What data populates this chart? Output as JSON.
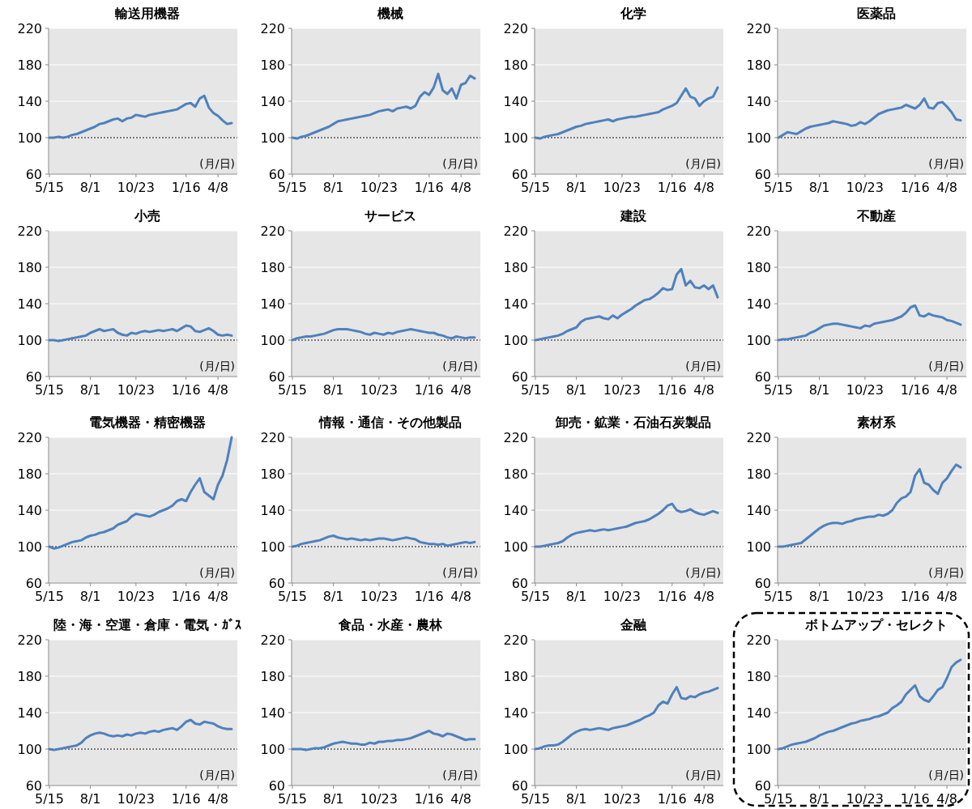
{
  "chart_data": [
    {
      "type": "line",
      "title": "輸送用機器",
      "categories": [
        "5/15",
        null,
        null,
        null,
        null,
        null,
        null,
        null,
        null,
        "8/1",
        null,
        null,
        null,
        null,
        null,
        null,
        null,
        null,
        null,
        "10/23",
        null,
        null,
        null,
        null,
        null,
        null,
        null,
        null,
        null,
        null,
        "1/16",
        null,
        null,
        null,
        null,
        null,
        null,
        "4/8",
        null,
        null,
        null
      ],
      "color": "#4f81bd",
      "values": [
        100,
        100,
        101,
        100,
        101,
        103,
        104,
        106,
        108,
        110,
        112,
        115,
        116,
        118,
        120,
        121,
        118,
        121,
        122,
        125,
        124,
        123,
        125,
        126,
        127,
        128,
        129,
        130,
        131,
        134,
        137,
        138,
        134,
        143,
        146,
        133,
        127,
        124,
        119,
        115,
        116
      ],
      "ylim": [
        60,
        220
      ],
      "yticks": [
        60,
        100,
        140,
        180,
        220
      ],
      "grid": "y",
      "ref_lines": [
        {
          "axis": "y",
          "value": 100,
          "line_style": "dotted",
          "color": "#000000"
        }
      ],
      "annotations": [
        "(月/日)"
      ]
    },
    {
      "type": "line",
      "title": "機械",
      "categories": [
        "5/15",
        null,
        null,
        null,
        null,
        null,
        null,
        null,
        null,
        "8/1",
        null,
        null,
        null,
        null,
        null,
        null,
        null,
        null,
        null,
        "10/23",
        null,
        null,
        null,
        null,
        null,
        null,
        null,
        null,
        null,
        null,
        "1/16",
        null,
        null,
        null,
        null,
        null,
        null,
        "4/8",
        null,
        null,
        null
      ],
      "color": "#4f81bd",
      "values": [
        100,
        99,
        101,
        102,
        104,
        106,
        108,
        110,
        112,
        115,
        118,
        119,
        120,
        121,
        122,
        123,
        124,
        125,
        127,
        129,
        130,
        131,
        129,
        132,
        133,
        134,
        132,
        135,
        145,
        150,
        147,
        155,
        170,
        152,
        148,
        154,
        143,
        158,
        160,
        168,
        165
      ],
      "ylim": [
        60,
        220
      ],
      "yticks": [
        60,
        100,
        140,
        180,
        220
      ],
      "grid": "y",
      "ref_lines": [
        {
          "axis": "y",
          "value": 100,
          "line_style": "dotted",
          "color": "#000000"
        }
      ],
      "annotations": [
        "(月/日)"
      ]
    },
    {
      "type": "line",
      "title": "化学",
      "categories": [
        "5/15",
        null,
        null,
        null,
        null,
        null,
        null,
        null,
        null,
        "8/1",
        null,
        null,
        null,
        null,
        null,
        null,
        null,
        null,
        null,
        "10/23",
        null,
        null,
        null,
        null,
        null,
        null,
        null,
        null,
        null,
        null,
        "1/16",
        null,
        null,
        null,
        null,
        null,
        null,
        "4/8",
        null,
        null,
        null
      ],
      "color": "#4f81bd",
      "values": [
        100,
        99,
        101,
        102,
        103,
        104,
        106,
        108,
        110,
        112,
        113,
        115,
        116,
        117,
        118,
        119,
        120,
        118,
        120,
        121,
        122,
        123,
        123,
        124,
        125,
        126,
        127,
        128,
        131,
        133,
        135,
        138,
        146,
        154,
        145,
        143,
        135,
        140,
        143,
        145,
        155
      ],
      "ylim": [
        60,
        220
      ],
      "yticks": [
        60,
        100,
        140,
        180,
        220
      ],
      "grid": "y",
      "ref_lines": [
        {
          "axis": "y",
          "value": 100,
          "line_style": "dotted",
          "color": "#000000"
        }
      ],
      "annotations": [
        "(月/日)"
      ]
    },
    {
      "type": "line",
      "title": "医薬品",
      "categories": [
        "5/15",
        null,
        null,
        null,
        null,
        null,
        null,
        null,
        null,
        "8/1",
        null,
        null,
        null,
        null,
        null,
        null,
        null,
        null,
        null,
        "10/23",
        null,
        null,
        null,
        null,
        null,
        null,
        null,
        null,
        null,
        null,
        "1/16",
        null,
        null,
        null,
        null,
        null,
        null,
        "4/8",
        null,
        null,
        null
      ],
      "color": "#4f81bd",
      "values": [
        100,
        103,
        106,
        105,
        104,
        107,
        110,
        112,
        113,
        114,
        115,
        116,
        118,
        117,
        116,
        115,
        113,
        114,
        117,
        115,
        118,
        122,
        126,
        128,
        130,
        131,
        132,
        133,
        136,
        134,
        132,
        136,
        143,
        133,
        132,
        138,
        139,
        134,
        128,
        120,
        119
      ],
      "ylim": [
        60,
        220
      ],
      "yticks": [
        60,
        100,
        140,
        180,
        220
      ],
      "grid": "y",
      "ref_lines": [
        {
          "axis": "y",
          "value": 100,
          "line_style": "dotted",
          "color": "#000000"
        }
      ],
      "annotations": [
        "(月/日)"
      ]
    },
    {
      "type": "line",
      "title": "小売",
      "categories": [
        "5/15",
        null,
        null,
        null,
        null,
        null,
        null,
        null,
        null,
        "8/1",
        null,
        null,
        null,
        null,
        null,
        null,
        null,
        null,
        null,
        "10/23",
        null,
        null,
        null,
        null,
        null,
        null,
        null,
        null,
        null,
        null,
        "1/16",
        null,
        null,
        null,
        null,
        null,
        null,
        "4/8",
        null,
        null,
        null
      ],
      "color": "#4f81bd",
      "values": [
        100,
        100,
        99,
        100,
        101,
        102,
        103,
        104,
        105,
        108,
        110,
        112,
        110,
        111,
        112,
        108,
        106,
        105,
        108,
        107,
        109,
        110,
        109,
        110,
        111,
        110,
        111,
        112,
        110,
        113,
        116,
        115,
        110,
        109,
        111,
        113,
        110,
        106,
        105,
        106,
        105
      ],
      "ylim": [
        60,
        220
      ],
      "yticks": [
        60,
        100,
        140,
        180,
        220
      ],
      "grid": "y",
      "ref_lines": [
        {
          "axis": "y",
          "value": 100,
          "line_style": "dotted",
          "color": "#000000"
        }
      ],
      "annotations": [
        "(月/日)"
      ]
    },
    {
      "type": "line",
      "title": "サービス",
      "categories": [
        "5/15",
        null,
        null,
        null,
        null,
        null,
        null,
        null,
        null,
        "8/1",
        null,
        null,
        null,
        null,
        null,
        null,
        null,
        null,
        null,
        "10/23",
        null,
        null,
        null,
        null,
        null,
        null,
        null,
        null,
        null,
        null,
        "1/16",
        null,
        null,
        null,
        null,
        null,
        null,
        "4/8",
        null,
        null,
        null
      ],
      "color": "#4f81bd",
      "values": [
        100,
        102,
        103,
        104,
        104,
        105,
        106,
        107,
        109,
        111,
        112,
        112,
        112,
        111,
        110,
        109,
        107,
        106,
        108,
        107,
        106,
        108,
        107,
        109,
        110,
        111,
        112,
        111,
        110,
        109,
        108,
        108,
        106,
        105,
        103,
        102,
        104,
        103,
        102,
        103,
        103
      ],
      "ylim": [
        60,
        220
      ],
      "yticks": [
        60,
        100,
        140,
        180,
        220
      ],
      "grid": "y",
      "ref_lines": [
        {
          "axis": "y",
          "value": 100,
          "line_style": "dotted",
          "color": "#000000"
        }
      ],
      "annotations": [
        "(月/日)"
      ]
    },
    {
      "type": "line",
      "title": "建設",
      "categories": [
        "5/15",
        null,
        null,
        null,
        null,
        null,
        null,
        null,
        null,
        "8/1",
        null,
        null,
        null,
        null,
        null,
        null,
        null,
        null,
        null,
        "10/23",
        null,
        null,
        null,
        null,
        null,
        null,
        null,
        null,
        null,
        null,
        "1/16",
        null,
        null,
        null,
        null,
        null,
        null,
        "4/8",
        null,
        null,
        null
      ],
      "color": "#4f81bd",
      "values": [
        100,
        101,
        102,
        103,
        104,
        105,
        107,
        110,
        112,
        114,
        120,
        123,
        124,
        125,
        126,
        124,
        123,
        127,
        124,
        128,
        131,
        134,
        138,
        141,
        144,
        145,
        148,
        152,
        157,
        155,
        156,
        172,
        178,
        160,
        165,
        158,
        157,
        160,
        156,
        160,
        147
      ],
      "ylim": [
        60,
        220
      ],
      "yticks": [
        60,
        100,
        140,
        180,
        220
      ],
      "grid": "y",
      "ref_lines": [
        {
          "axis": "y",
          "value": 100,
          "line_style": "dotted",
          "color": "#000000"
        }
      ],
      "annotations": [
        "(月/日)"
      ]
    },
    {
      "type": "line",
      "title": "不動産",
      "categories": [
        "5/15",
        null,
        null,
        null,
        null,
        null,
        null,
        null,
        null,
        "8/1",
        null,
        null,
        null,
        null,
        null,
        null,
        null,
        null,
        null,
        "10/23",
        null,
        null,
        null,
        null,
        null,
        null,
        null,
        null,
        null,
        null,
        "1/16",
        null,
        null,
        null,
        null,
        null,
        null,
        "4/8",
        null,
        null,
        null
      ],
      "color": "#4f81bd",
      "values": [
        100,
        101,
        101,
        102,
        103,
        104,
        105,
        108,
        110,
        113,
        116,
        117,
        118,
        118,
        117,
        116,
        115,
        114,
        113,
        116,
        115,
        118,
        119,
        120,
        121,
        122,
        124,
        126,
        130,
        136,
        138,
        127,
        126,
        129,
        127,
        126,
        125,
        122,
        121,
        119,
        117
      ],
      "ylim": [
        60,
        220
      ],
      "yticks": [
        60,
        100,
        140,
        180,
        220
      ],
      "grid": "y",
      "ref_lines": [
        {
          "axis": "y",
          "value": 100,
          "line_style": "dotted",
          "color": "#000000"
        }
      ],
      "annotations": [
        "(月/日)"
      ]
    },
    {
      "type": "line",
      "title": "電気機器・精密機器",
      "categories": [
        "5/15",
        null,
        null,
        null,
        null,
        null,
        null,
        null,
        null,
        "8/1",
        null,
        null,
        null,
        null,
        null,
        null,
        null,
        null,
        null,
        "10/23",
        null,
        null,
        null,
        null,
        null,
        null,
        null,
        null,
        null,
        null,
        "1/16",
        null,
        null,
        null,
        null,
        null,
        null,
        "4/8",
        null,
        null,
        null
      ],
      "color": "#4f81bd",
      "values": [
        100,
        98,
        99,
        101,
        103,
        105,
        106,
        107,
        110,
        112,
        113,
        115,
        116,
        118,
        120,
        124,
        126,
        128,
        133,
        136,
        135,
        134,
        133,
        135,
        138,
        140,
        142,
        145,
        150,
        152,
        150,
        160,
        168,
        175,
        160,
        156,
        152,
        168,
        178,
        195,
        220
      ],
      "ylim": [
        60,
        220
      ],
      "yticks": [
        60,
        100,
        140,
        180,
        220
      ],
      "grid": "y",
      "ref_lines": [
        {
          "axis": "y",
          "value": 100,
          "line_style": "dotted",
          "color": "#000000"
        }
      ],
      "annotations": [
        "(月/日)"
      ]
    },
    {
      "type": "line",
      "title": "情報・通信・その他製品",
      "categories": [
        "5/15",
        null,
        null,
        null,
        null,
        null,
        null,
        null,
        null,
        "8/1",
        null,
        null,
        null,
        null,
        null,
        null,
        null,
        null,
        null,
        "10/23",
        null,
        null,
        null,
        null,
        null,
        null,
        null,
        null,
        null,
        null,
        "1/16",
        null,
        null,
        null,
        null,
        null,
        null,
        "4/8",
        null,
        null,
        null
      ],
      "color": "#4f81bd",
      "values": [
        100,
        101,
        103,
        104,
        105,
        106,
        107,
        109,
        111,
        112,
        110,
        109,
        108,
        109,
        108,
        107,
        108,
        107,
        108,
        109,
        109,
        108,
        107,
        108,
        109,
        110,
        109,
        108,
        105,
        104,
        103,
        103,
        102,
        103,
        101,
        102,
        103,
        104,
        105,
        104,
        105
      ],
      "ylim": [
        60,
        220
      ],
      "yticks": [
        60,
        100,
        140,
        180,
        220
      ],
      "grid": "y",
      "ref_lines": [
        {
          "axis": "y",
          "value": 100,
          "line_style": "dotted",
          "color": "#000000"
        }
      ],
      "annotations": [
        "(月/日)"
      ]
    },
    {
      "type": "line",
      "title": "卸売・鉱業・石油石炭製品",
      "categories": [
        "5/15",
        null,
        null,
        null,
        null,
        null,
        null,
        null,
        null,
        "8/1",
        null,
        null,
        null,
        null,
        null,
        null,
        null,
        null,
        null,
        "10/23",
        null,
        null,
        null,
        null,
        null,
        null,
        null,
        null,
        null,
        null,
        "1/16",
        null,
        null,
        null,
        null,
        null,
        null,
        "4/8",
        null,
        null,
        null
      ],
      "color": "#4f81bd",
      "values": [
        100,
        100,
        101,
        102,
        103,
        104,
        106,
        110,
        113,
        115,
        116,
        117,
        118,
        117,
        118,
        119,
        118,
        119,
        120,
        121,
        122,
        124,
        126,
        127,
        128,
        130,
        133,
        136,
        140,
        145,
        147,
        140,
        138,
        139,
        141,
        138,
        136,
        135,
        137,
        139,
        137
      ],
      "ylim": [
        60,
        220
      ],
      "yticks": [
        60,
        100,
        140,
        180,
        220
      ],
      "grid": "y",
      "ref_lines": [
        {
          "axis": "y",
          "value": 100,
          "line_style": "dotted",
          "color": "#000000"
        }
      ],
      "annotations": [
        "(月/日)"
      ]
    },
    {
      "type": "line",
      "title": "素材系",
      "categories": [
        "5/15",
        null,
        null,
        null,
        null,
        null,
        null,
        null,
        null,
        "8/1",
        null,
        null,
        null,
        null,
        null,
        null,
        null,
        null,
        null,
        "10/23",
        null,
        null,
        null,
        null,
        null,
        null,
        null,
        null,
        null,
        null,
        "1/16",
        null,
        null,
        null,
        null,
        null,
        null,
        "4/8",
        null,
        null,
        null
      ],
      "color": "#4f81bd",
      "values": [
        100,
        100,
        101,
        102,
        103,
        104,
        108,
        112,
        116,
        120,
        123,
        125,
        126,
        126,
        125,
        127,
        128,
        130,
        131,
        132,
        133,
        133,
        135,
        134,
        136,
        140,
        148,
        153,
        155,
        160,
        178,
        185,
        170,
        168,
        162,
        158,
        170,
        175,
        183,
        190,
        187
      ],
      "ylim": [
        60,
        220
      ],
      "yticks": [
        60,
        100,
        140,
        180,
        220
      ],
      "grid": "y",
      "ref_lines": [
        {
          "axis": "y",
          "value": 100,
          "line_style": "dotted",
          "color": "#000000"
        }
      ],
      "annotations": [
        "(月/日)"
      ]
    },
    {
      "type": "line",
      "title": "陸・海・空運・倉庫・電気・ｶﾞｽ",
      "categories": [
        "5/15",
        null,
        null,
        null,
        null,
        null,
        null,
        null,
        null,
        "8/1",
        null,
        null,
        null,
        null,
        null,
        null,
        null,
        null,
        null,
        "10/23",
        null,
        null,
        null,
        null,
        null,
        null,
        null,
        null,
        null,
        null,
        "1/16",
        null,
        null,
        null,
        null,
        null,
        null,
        "4/8",
        null,
        null,
        null
      ],
      "color": "#4f81bd",
      "values": [
        100,
        99,
        100,
        101,
        102,
        103,
        104,
        107,
        112,
        115,
        117,
        118,
        117,
        115,
        114,
        115,
        114,
        116,
        115,
        117,
        118,
        117,
        119,
        120,
        119,
        121,
        122,
        123,
        121,
        125,
        130,
        132,
        128,
        127,
        130,
        129,
        128,
        125,
        123,
        122,
        122
      ],
      "ylim": [
        60,
        220
      ],
      "yticks": [
        60,
        100,
        140,
        180,
        220
      ],
      "grid": "y",
      "ref_lines": [
        {
          "axis": "y",
          "value": 100,
          "line_style": "dotted",
          "color": "#000000"
        }
      ],
      "annotations": [
        "(月/日)"
      ]
    },
    {
      "type": "line",
      "title": "食品・水産・農林",
      "categories": [
        "5/15",
        null,
        null,
        null,
        null,
        null,
        null,
        null,
        null,
        "8/1",
        null,
        null,
        null,
        null,
        null,
        null,
        null,
        null,
        null,
        "10/23",
        null,
        null,
        null,
        null,
        null,
        null,
        null,
        null,
        null,
        null,
        "1/16",
        null,
        null,
        null,
        null,
        null,
        null,
        "4/8",
        null,
        null,
        null
      ],
      "color": "#4f81bd",
      "values": [
        100,
        100,
        100,
        99,
        100,
        101,
        101,
        102,
        104,
        106,
        107,
        108,
        107,
        106,
        106,
        105,
        105,
        107,
        106,
        108,
        108,
        109,
        109,
        110,
        110,
        111,
        112,
        114,
        116,
        118,
        120,
        117,
        116,
        114,
        117,
        116,
        114,
        112,
        110,
        111,
        111
      ],
      "ylim": [
        60,
        220
      ],
      "yticks": [
        60,
        100,
        140,
        180,
        220
      ],
      "grid": "y",
      "ref_lines": [
        {
          "axis": "y",
          "value": 100,
          "line_style": "dotted",
          "color": "#000000"
        }
      ],
      "annotations": [
        "(月/日)"
      ]
    },
    {
      "type": "line",
      "title": "金融",
      "categories": [
        "5/15",
        null,
        null,
        null,
        null,
        null,
        null,
        null,
        null,
        "8/1",
        null,
        null,
        null,
        null,
        null,
        null,
        null,
        null,
        null,
        "10/23",
        null,
        null,
        null,
        null,
        null,
        null,
        null,
        null,
        null,
        null,
        "1/16",
        null,
        null,
        null,
        null,
        null,
        null,
        "4/8",
        null,
        null,
        null
      ],
      "color": "#4f81bd",
      "values": [
        100,
        101,
        103,
        104,
        104,
        105,
        108,
        112,
        116,
        119,
        121,
        122,
        121,
        122,
        123,
        122,
        121,
        123,
        124,
        125,
        126,
        128,
        130,
        132,
        135,
        137,
        140,
        148,
        152,
        150,
        160,
        168,
        156,
        155,
        158,
        157,
        160,
        162,
        163,
        165,
        167
      ],
      "ylim": [
        60,
        220
      ],
      "yticks": [
        60,
        100,
        140,
        180,
        220
      ],
      "grid": "y",
      "ref_lines": [
        {
          "axis": "y",
          "value": 100,
          "line_style": "dotted",
          "color": "#000000"
        }
      ],
      "annotations": [
        "(月/日)"
      ]
    },
    {
      "type": "line",
      "title": "ボトムアップ・セレクト",
      "categories": [
        "5/15",
        null,
        null,
        null,
        null,
        null,
        null,
        null,
        null,
        "8/1",
        null,
        null,
        null,
        null,
        null,
        null,
        null,
        null,
        null,
        "10/23",
        null,
        null,
        null,
        null,
        null,
        null,
        null,
        null,
        null,
        null,
        "1/16",
        null,
        null,
        null,
        null,
        null,
        null,
        "4/8",
        null,
        null,
        null
      ],
      "color": "#4f81bd",
      "values": [
        100,
        101,
        103,
        105,
        106,
        107,
        108,
        110,
        112,
        115,
        117,
        119,
        120,
        122,
        124,
        126,
        128,
        129,
        131,
        132,
        133,
        135,
        136,
        138,
        140,
        145,
        148,
        152,
        160,
        165,
        170,
        158,
        154,
        152,
        158,
        165,
        168,
        178,
        190,
        195,
        198
      ],
      "ylim": [
        60,
        220
      ],
      "yticks": [
        60,
        100,
        140,
        180,
        220
      ],
      "grid": "y",
      "ref_lines": [
        {
          "axis": "y",
          "value": 100,
          "line_style": "dotted",
          "color": "#000000"
        }
      ],
      "annotations": [
        "(月/日)"
      ]
    }
  ]
}
